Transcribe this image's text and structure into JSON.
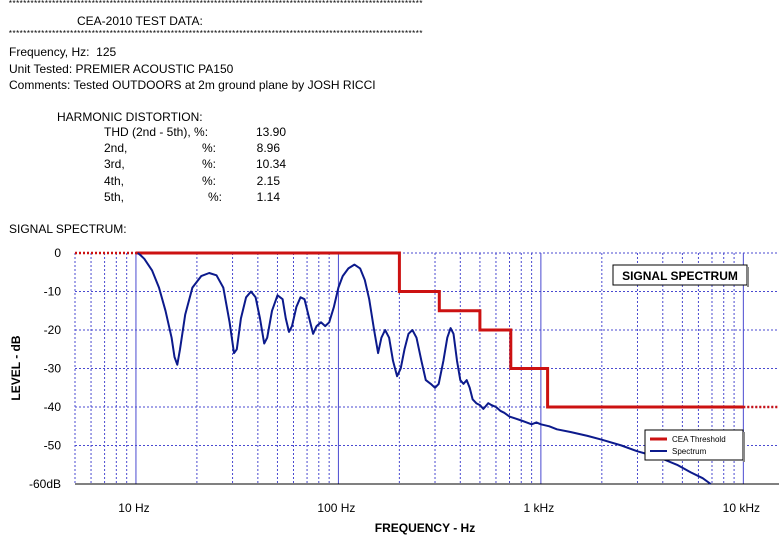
{
  "header": {
    "stars": "*******************************************************************************************************************",
    "title": "CEA-2010 TEST DATA:"
  },
  "info": {
    "frequency": "Frequency, Hz:  125",
    "unit": "Unit Tested: PREMIER ACOUSTIC PA150",
    "comments": "Comments: Tested OUTDOORS at 2m ground plane by JOSH RICCI"
  },
  "harmonic": {
    "heading": "HARMONIC DISTORTION:",
    "rows": [
      {
        "name": "THD (2nd - 5th), %:",
        "pct": "",
        "value": "13.90"
      },
      {
        "name": "2nd,",
        "pct": "%:",
        "value": "8.96"
      },
      {
        "name": "3rd,",
        "pct": "%:",
        "value": "10.34"
      },
      {
        "name": "4th,",
        "pct": "%:",
        "value": "2.15"
      },
      {
        "name": "5th,",
        "pct": "%:",
        "value": "1.14"
      }
    ]
  },
  "spectrum_heading": "SIGNAL SPECTRUM:",
  "colors": {
    "threshold": "#cc1111",
    "spectrum": "#0c1a8c",
    "grid": "#4a4ad0"
  },
  "chart_data": {
    "type": "line",
    "title": "SIGNAL SPECTRUM",
    "xlabel": "FREQUENCY - Hz",
    "ylabel": "LEVEL - dB",
    "x_scale": "log",
    "xlim": [
      5,
      15000
    ],
    "ylim": [
      -60,
      0
    ],
    "x_ticks": [
      {
        "value": 10,
        "label": "10  Hz"
      },
      {
        "value": 100,
        "label": "100  Hz"
      },
      {
        "value": 1000,
        "label": "1 kHz"
      },
      {
        "value": 10000,
        "label": "10 kHz"
      }
    ],
    "y_ticks": [
      {
        "value": 0,
        "label": "0"
      },
      {
        "value": -10,
        "label": "-10"
      },
      {
        "value": -20,
        "label": "-20"
      },
      {
        "value": -30,
        "label": "-30"
      },
      {
        "value": -40,
        "label": "-40"
      },
      {
        "value": -50,
        "label": "-50"
      },
      {
        "value": -60,
        "label": "-60dB"
      }
    ],
    "grid": true,
    "legend_position": "bottom-right",
    "series": [
      {
        "name": "CEA Threshold",
        "points": [
          [
            10,
            0
          ],
          [
            200,
            0
          ],
          [
            200,
            -10
          ],
          [
            315,
            -10
          ],
          [
            315,
            -15
          ],
          [
            500,
            -15
          ],
          [
            500,
            -20
          ],
          [
            710,
            -20
          ],
          [
            710,
            -30
          ],
          [
            1080,
            -30
          ],
          [
            1080,
            -40
          ],
          [
            10000,
            -40
          ]
        ],
        "dotted_extensions": [
          [
            [
              5,
              0
            ],
            [
              10,
              0
            ]
          ],
          [
            [
              10000,
              -40
            ],
            [
              15000,
              -40
            ]
          ]
        ]
      },
      {
        "name": "Spectrum",
        "points": [
          [
            10.2,
            0
          ],
          [
            10.5,
            -0.5
          ],
          [
            11,
            -1.5
          ],
          [
            12,
            -4.5
          ],
          [
            13,
            -9
          ],
          [
            14,
            -15
          ],
          [
            15,
            -22
          ],
          [
            15.5,
            -27
          ],
          [
            16,
            -29
          ],
          [
            16.5,
            -25
          ],
          [
            17.5,
            -16
          ],
          [
            19,
            -9
          ],
          [
            21,
            -6
          ],
          [
            23,
            -5.2
          ],
          [
            25,
            -5.8
          ],
          [
            27,
            -9
          ],
          [
            29,
            -18
          ],
          [
            30.5,
            -26
          ],
          [
            31.5,
            -25
          ],
          [
            33,
            -17
          ],
          [
            35,
            -11.5
          ],
          [
            37,
            -10
          ],
          [
            39,
            -11.5
          ],
          [
            41,
            -17
          ],
          [
            43,
            -23.5
          ],
          [
            44.5,
            -22
          ],
          [
            47,
            -15
          ],
          [
            50,
            -11
          ],
          [
            53,
            -12
          ],
          [
            55,
            -17
          ],
          [
            57,
            -20.5
          ],
          [
            59,
            -19
          ],
          [
            62,
            -14
          ],
          [
            65,
            -11.5
          ],
          [
            68,
            -12
          ],
          [
            71,
            -16
          ],
          [
            75,
            -21
          ],
          [
            78,
            -19
          ],
          [
            82,
            -18
          ],
          [
            86,
            -19
          ],
          [
            90,
            -18
          ],
          [
            95,
            -14
          ],
          [
            100,
            -9
          ],
          [
            105,
            -6
          ],
          [
            112,
            -4
          ],
          [
            120,
            -3
          ],
          [
            128,
            -4
          ],
          [
            135,
            -7
          ],
          [
            142,
            -12
          ],
          [
            150,
            -20
          ],
          [
            157,
            -26
          ],
          [
            163,
            -22
          ],
          [
            170,
            -20
          ],
          [
            178,
            -22
          ],
          [
            186,
            -28
          ],
          [
            195,
            -32
          ],
          [
            203,
            -30
          ],
          [
            212,
            -25
          ],
          [
            222,
            -21
          ],
          [
            232,
            -20
          ],
          [
            243,
            -22
          ],
          [
            257,
            -28
          ],
          [
            270,
            -33
          ],
          [
            286,
            -34
          ],
          [
            300,
            -35
          ],
          [
            313,
            -34
          ],
          [
            330,
            -28
          ],
          [
            345,
            -22
          ],
          [
            358,
            -19.5
          ],
          [
            370,
            -21
          ],
          [
            385,
            -28
          ],
          [
            400,
            -33
          ],
          [
            415,
            -34
          ],
          [
            430,
            -33
          ],
          [
            445,
            -35
          ],
          [
            460,
            -38
          ],
          [
            480,
            -39
          ],
          [
            500,
            -39.5
          ],
          [
            520,
            -40.5
          ],
          [
            550,
            -39
          ],
          [
            570,
            -39.5
          ],
          [
            600,
            -40
          ],
          [
            630,
            -41
          ],
          [
            660,
            -41.5
          ],
          [
            700,
            -42.5
          ],
          [
            750,
            -43
          ],
          [
            800,
            -43.5
          ],
          [
            850,
            -44
          ],
          [
            900,
            -44.5
          ],
          [
            950,
            -44
          ],
          [
            1000,
            -44.5
          ],
          [
            1100,
            -45
          ],
          [
            1200,
            -45.8
          ],
          [
            1400,
            -46.5
          ],
          [
            1700,
            -47.5
          ],
          [
            2000,
            -48.5
          ],
          [
            2500,
            -50
          ],
          [
            3000,
            -51.5
          ],
          [
            3500,
            -52.5
          ],
          [
            4000,
            -53.5
          ],
          [
            4700,
            -55
          ],
          [
            5500,
            -57
          ],
          [
            6300,
            -58.5
          ],
          [
            6900,
            -60
          ]
        ]
      }
    ]
  }
}
